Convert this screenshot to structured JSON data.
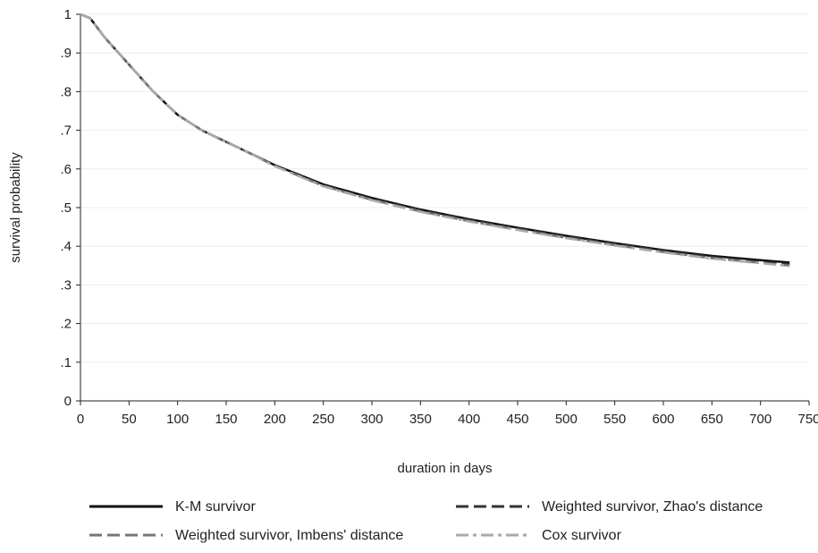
{
  "chart_data": {
    "type": "line",
    "title": "",
    "xlabel": "duration in days",
    "ylabel": "survival probability",
    "xlim": [
      0,
      750
    ],
    "ylim": [
      0,
      1
    ],
    "grid": true,
    "legend_position": "bottom",
    "x_ticks": [
      0,
      50,
      100,
      150,
      200,
      250,
      300,
      350,
      400,
      450,
      500,
      550,
      600,
      650,
      700,
      750
    ],
    "x_tick_labels": [
      "0",
      "50",
      "100",
      "150",
      "200",
      "250",
      "300",
      "350",
      "400",
      "450",
      "500",
      "550",
      "600",
      "650",
      "700",
      "750"
    ],
    "y_ticks": [
      0,
      0.1,
      0.2,
      0.3,
      0.4,
      0.5,
      0.6,
      0.7,
      0.8,
      0.9,
      1
    ],
    "y_tick_labels": [
      "0",
      ".1",
      ".2",
      ".3",
      ".4",
      ".5",
      ".6",
      ".7",
      ".8",
      ".9",
      "1"
    ],
    "x": [
      0,
      10,
      25,
      50,
      75,
      100,
      125,
      150,
      175,
      200,
      250,
      300,
      350,
      400,
      450,
      500,
      550,
      600,
      650,
      700,
      730
    ],
    "series": [
      {
        "name": "K-M survivor",
        "color": "#111111",
        "dash": "solid",
        "values": [
          1.0,
          0.99,
          0.94,
          0.87,
          0.8,
          0.74,
          0.7,
          0.67,
          0.64,
          0.61,
          0.56,
          0.525,
          0.495,
          0.47,
          0.448,
          0.427,
          0.408,
          0.39,
          0.375,
          0.364,
          0.358
        ]
      },
      {
        "name": "Weighted survivor, Zhao's distance",
        "color": "#333333",
        "dash": "long",
        "values": [
          1.0,
          0.99,
          0.94,
          0.87,
          0.8,
          0.74,
          0.7,
          0.67,
          0.64,
          0.608,
          0.557,
          0.522,
          0.493,
          0.468,
          0.446,
          0.425,
          0.406,
          0.388,
          0.372,
          0.36,
          0.353
        ]
      },
      {
        "name": "Weighted survivor, Imbens' distance",
        "color": "#777777",
        "dash": "long",
        "values": [
          1.0,
          0.99,
          0.94,
          0.87,
          0.8,
          0.74,
          0.7,
          0.67,
          0.64,
          0.608,
          0.556,
          0.52,
          0.49,
          0.465,
          0.443,
          0.422,
          0.403,
          0.385,
          0.369,
          0.357,
          0.35
        ]
      },
      {
        "name": "Cox survivor",
        "color": "#aaaaaa",
        "dash": "dashdot",
        "values": [
          1.0,
          0.99,
          0.94,
          0.87,
          0.8,
          0.74,
          0.7,
          0.67,
          0.64,
          0.607,
          0.555,
          0.519,
          0.489,
          0.464,
          0.442,
          0.421,
          0.402,
          0.384,
          0.368,
          0.356,
          0.349
        ]
      }
    ]
  }
}
